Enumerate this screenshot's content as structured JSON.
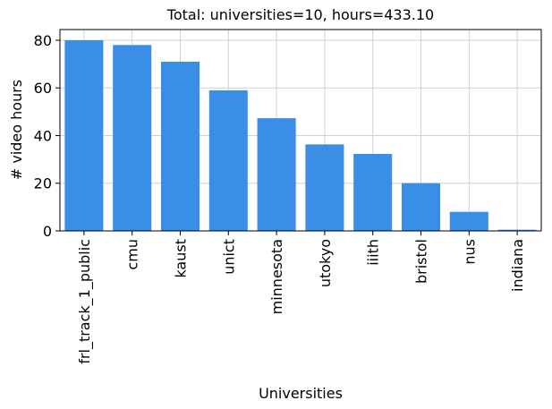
{
  "chart_data": {
    "type": "bar",
    "title": "Total: universities=10, hours=433.10",
    "x_label": "Universities",
    "y_label": "# video hours",
    "categories": [
      "frl_track_1_public",
      "cmu",
      "kaust",
      "unict",
      "minnesota",
      "utokyo",
      "iiith",
      "bristol",
      "nus",
      "indiana"
    ],
    "values": [
      80,
      78,
      71,
      59,
      47.3,
      36.3,
      32.3,
      20,
      8,
      0.5
    ],
    "color": "#3a8ee6",
    "ylim": [
      0,
      84.5
    ],
    "yticks": [
      0,
      20,
      40,
      60,
      80
    ],
    "grid": true
  }
}
